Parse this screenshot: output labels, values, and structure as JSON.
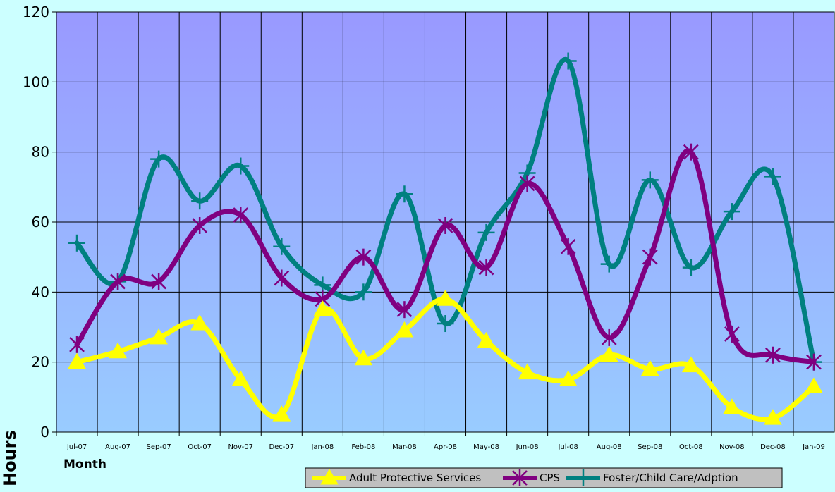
{
  "chart_data": {
    "type": "line",
    "xlabel": "Month",
    "ylabel": "Hours",
    "ylim": [
      0,
      120
    ],
    "yticks": [
      0,
      20,
      40,
      60,
      80,
      100,
      120
    ],
    "categories": [
      "Jul-07",
      "Aug-07",
      "Sep-07",
      "Oct-07",
      "Nov-07",
      "Dec-07",
      "Jan-08",
      "Feb-08",
      "Mar-08",
      "Apr-08",
      "May-08",
      "Jun-08",
      "Jul-08",
      "Aug-08",
      "Sep-08",
      "Oct-08",
      "Nov-08",
      "Dec-08",
      "Jan-09"
    ],
    "grid": true,
    "legend_position": "bottom-right",
    "series": [
      {
        "name": "Adult Protective Services",
        "color": "#ffff00",
        "marker": "triangle",
        "values": [
          20,
          23,
          27,
          31,
          15,
          5,
          35,
          21,
          29,
          38,
          26,
          17,
          15,
          22,
          18,
          19,
          7,
          4,
          13
        ]
      },
      {
        "name": "CPS",
        "color": "#800080",
        "marker": "asterisk",
        "values": [
          25,
          43,
          43,
          59,
          62,
          44,
          38,
          50,
          35,
          59,
          47,
          71,
          53,
          27,
          50,
          80,
          28,
          22,
          20
        ]
      },
      {
        "name": "Foster/Child Care/Adption",
        "color": "#008080",
        "marker": "plus",
        "values": [
          54,
          43,
          78,
          66,
          76,
          53,
          42,
          40,
          68,
          31,
          57,
          74,
          106,
          48,
          72,
          47,
          63,
          73,
          20
        ]
      }
    ],
    "colors": {
      "background": "#ccffff",
      "plot_top": "#9999ff",
      "plot_bottom": "#99ccff",
      "gridline": "#000000"
    }
  }
}
